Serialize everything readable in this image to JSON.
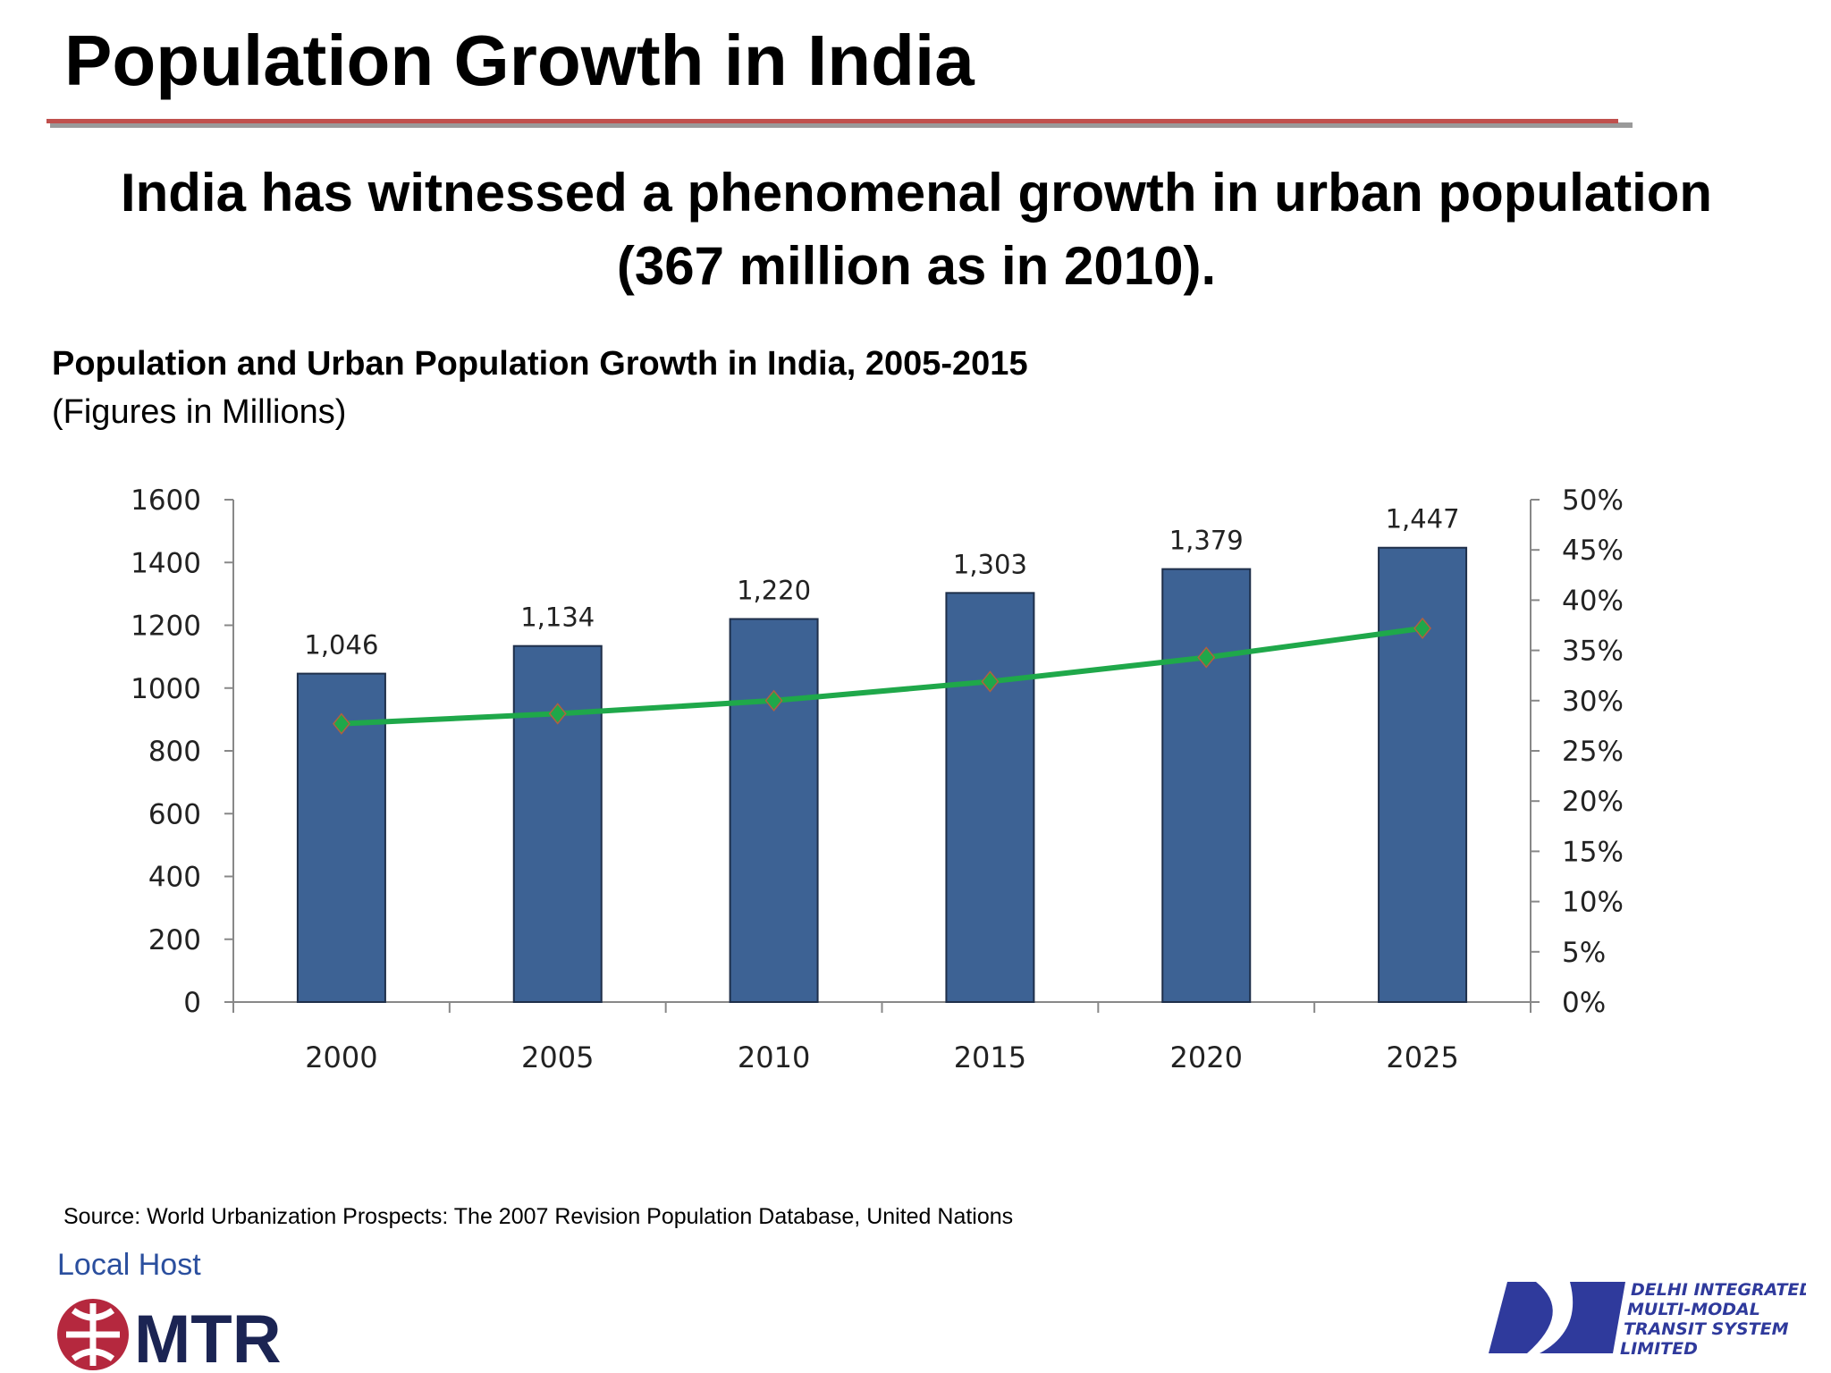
{
  "header": {
    "title": "Population Growth in India"
  },
  "headline": {
    "line1": "India has witnessed a phenomenal growth in urban population",
    "line2": "(367 million as in 2010)."
  },
  "chart_data": {
    "type": "bar",
    "title": "Population and Urban Population Growth in India, 2005-2015",
    "subtitle": "(Figures in Millions)",
    "categories": [
      "2000",
      "2005",
      "2010",
      "2015",
      "2020",
      "2025"
    ],
    "series": [
      {
        "type": "bar",
        "axis": "left",
        "values": [
          1046,
          1134,
          1220,
          1303,
          1379,
          1447
        ],
        "data_labels": [
          "1,046",
          "1,134",
          "1,220",
          "1,303",
          "1,379",
          "1,447"
        ],
        "color": "#3d6294"
      },
      {
        "type": "line",
        "axis": "right",
        "values": [
          27.7,
          28.7,
          30.0,
          31.9,
          34.3,
          37.2
        ],
        "color": "#1fa84a",
        "marker": "diamond"
      }
    ],
    "ylim": [
      0,
      1600
    ],
    "yticks": [
      "0",
      "200",
      "400",
      "600",
      "800",
      "1000",
      "1200",
      "1400",
      "1600"
    ],
    "y2lim": [
      0,
      50
    ],
    "y2ticks": [
      "0%",
      "5%",
      "10%",
      "15%",
      "20%",
      "25%",
      "30%",
      "35%",
      "40%",
      "45%",
      "50%"
    ],
    "grid": false,
    "legend": "none"
  },
  "footer": {
    "source": "Source: World Urbanization Prospects: The 2007 Revision Population Database, United Nations",
    "local_host": "Local Host",
    "mtr_logo": "MTR",
    "dimts_logo": [
      "DELHI INTEGRATED",
      "MULTI-MODAL",
      "TRANSIT SYSTEM",
      "LIMITED"
    ]
  }
}
